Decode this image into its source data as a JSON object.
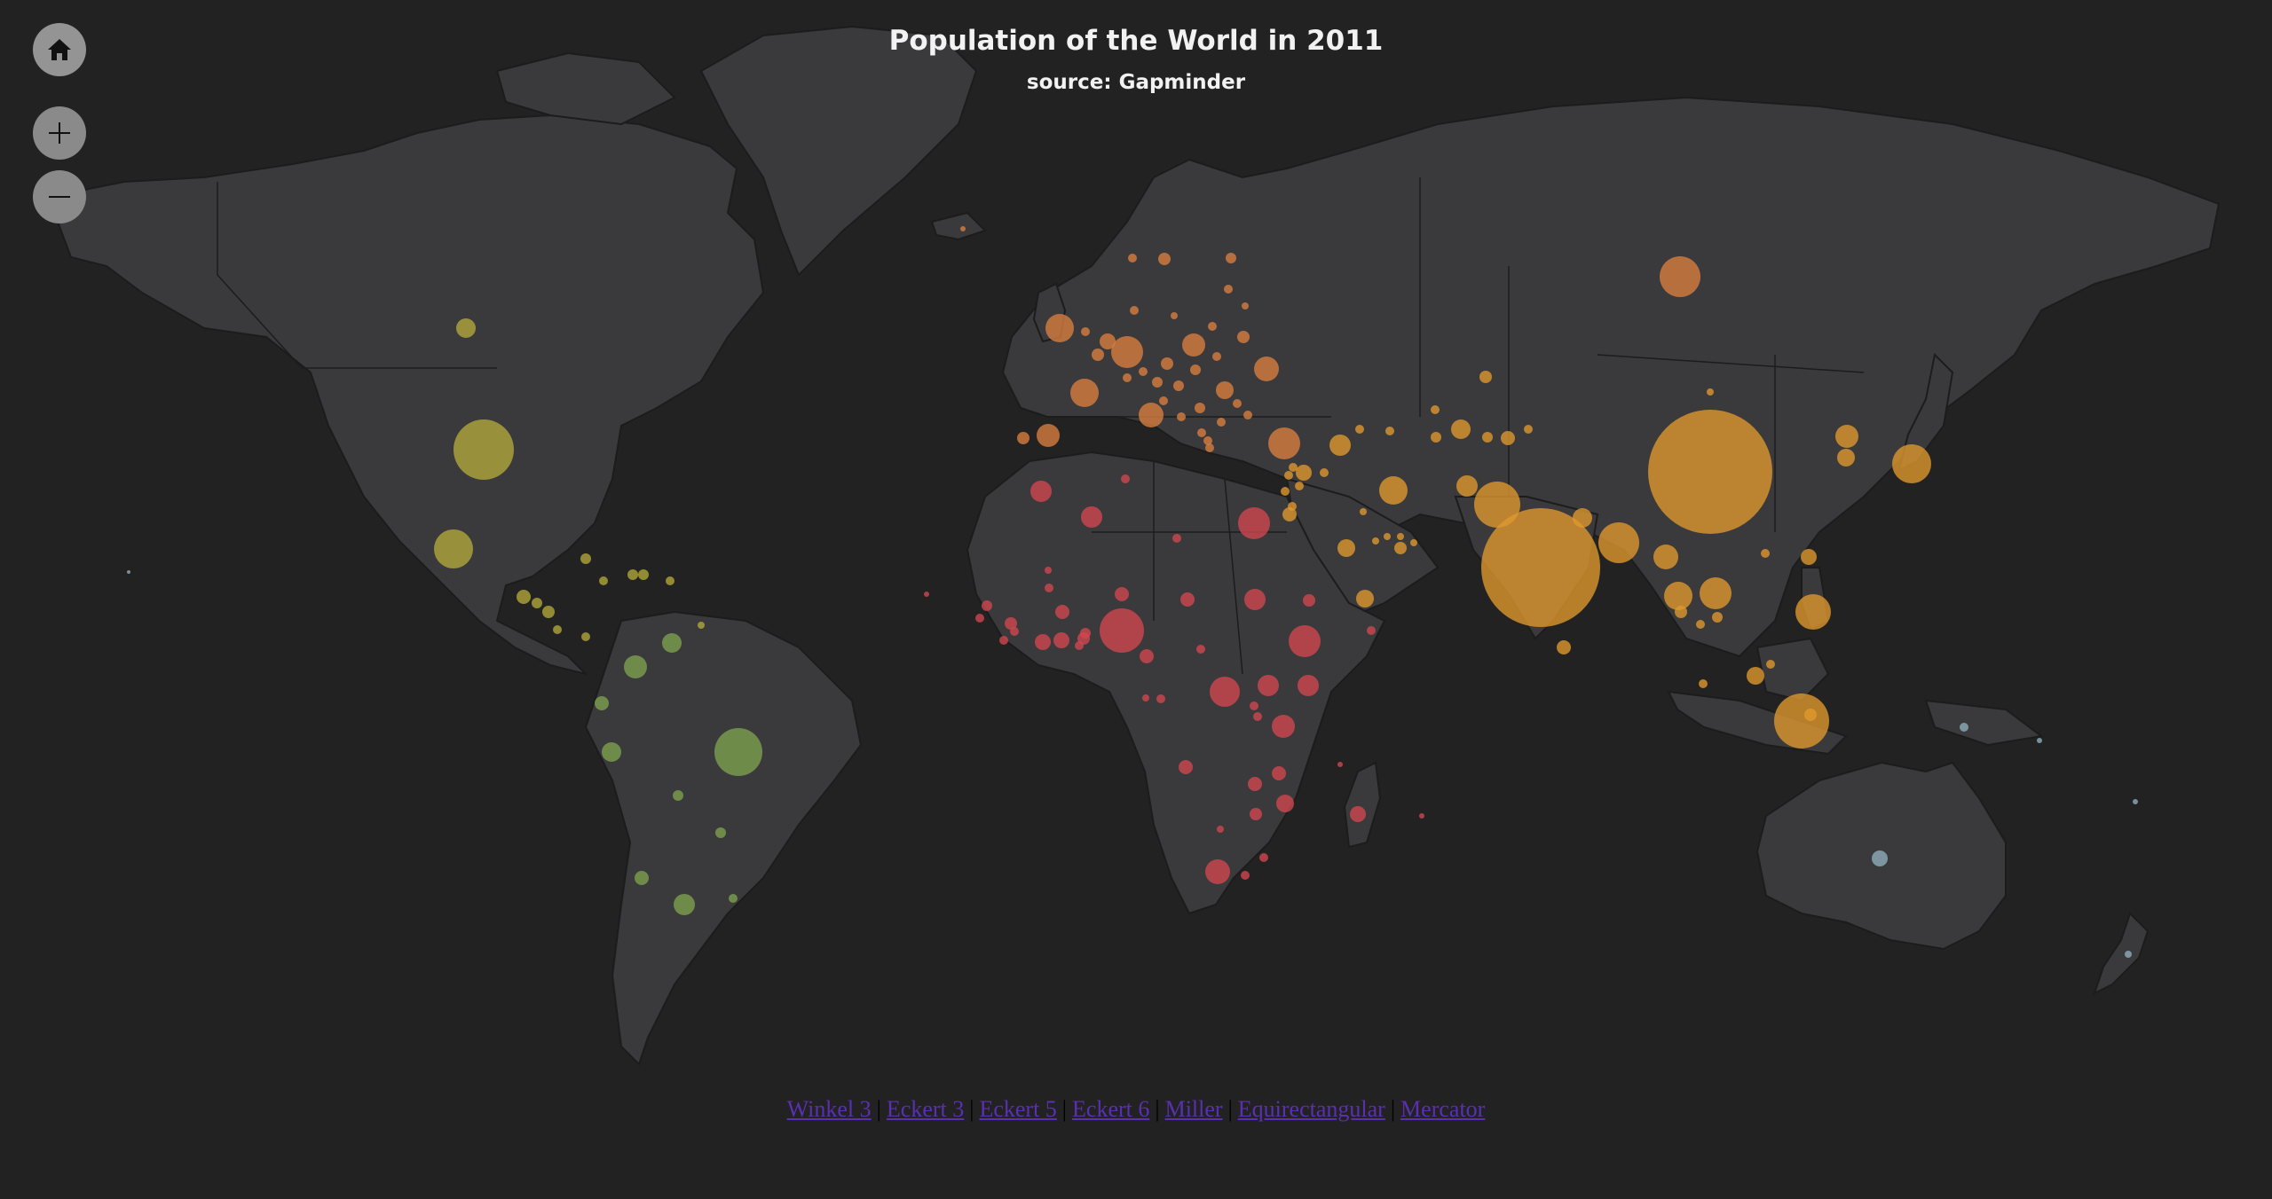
{
  "title": "Population of the World in 2011",
  "subtitle": "source: Gapminder",
  "controls": {
    "home_icon": "home-icon",
    "zoom_in_icon": "plus-icon",
    "zoom_out_icon": "minus-icon"
  },
  "projections": [
    "Winkel 3",
    "Eckert 3",
    "Eckert 5",
    "Eckert 6",
    "Miller",
    "Equirectangular",
    "Mercator"
  ],
  "colors": {
    "background": "#222222",
    "land": "#3a3a3c",
    "border": "#1c1c1c",
    "africa": "#d3464f",
    "asia": "#e19a2d",
    "europe": "#db7f3f",
    "north_america": "#b3a93a",
    "south_america": "#7fa34e",
    "oceania": "#8fb0bd"
  }
}
